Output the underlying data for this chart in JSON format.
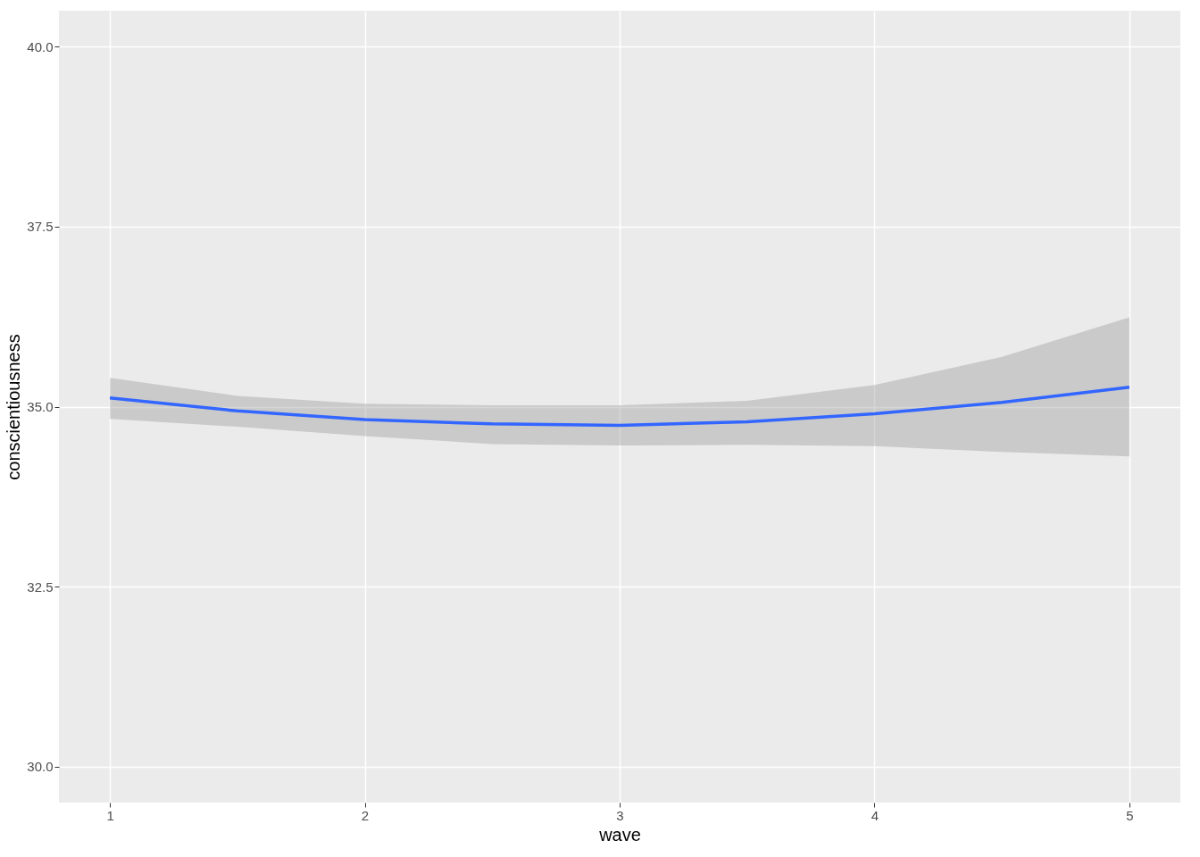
{
  "chart_data": {
    "type": "line",
    "xlabel": "wave",
    "ylabel": "conscientiousness",
    "x": [
      1,
      1.5,
      2,
      2.5,
      3,
      3.5,
      4,
      4.5,
      5
    ],
    "series": [
      {
        "color": "#3366ff",
        "values": [
          35.12,
          34.94,
          34.82,
          34.76,
          34.74,
          34.79,
          34.9,
          35.06,
          35.27
        ],
        "lower": [
          34.83,
          34.72,
          34.59,
          34.48,
          34.46,
          34.47,
          34.45,
          34.37,
          34.31
        ],
        "upper": [
          35.4,
          35.15,
          35.04,
          35.02,
          35.02,
          35.08,
          35.3,
          35.69,
          36.24
        ]
      }
    ],
    "xlim": [
      0.8,
      5.2
    ],
    "xticks": [
      1,
      2,
      3,
      4,
      5
    ],
    "ylim": [
      29.5,
      40.5
    ],
    "yticks": [
      {
        "value": 30,
        "label": "30.0"
      },
      32.5,
      {
        "value": 35,
        "label": "35.0"
      },
      37.5,
      {
        "value": 40,
        "label": "40.0"
      }
    ],
    "grid": true,
    "line_style": "solid",
    "marker": "none"
  }
}
